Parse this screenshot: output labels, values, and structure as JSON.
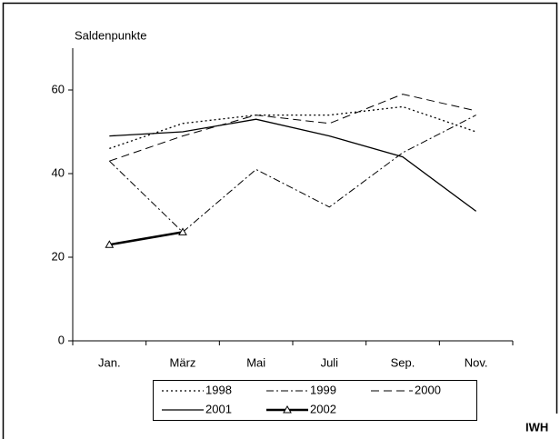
{
  "chart_data": {
    "type": "line",
    "y_label": "Saldenpunkte",
    "categories": [
      "Jan.",
      "März",
      "Mai",
      "Juli",
      "Sep.",
      "Nov."
    ],
    "ylim": [
      0,
      70
    ],
    "yticks": [
      0,
      20,
      40,
      60
    ],
    "series": [
      {
        "name": "1998",
        "color": "#000000",
        "dash": "dotted",
        "width": 1.3,
        "values": [
          46,
          52,
          54,
          54,
          56,
          50
        ]
      },
      {
        "name": "1999",
        "color": "#000000",
        "dash": "dash-dot",
        "width": 1,
        "values": [
          43,
          26,
          41,
          32,
          45,
          54
        ]
      },
      {
        "name": "2000",
        "color": "#000000",
        "dash": "dashed",
        "width": 1,
        "values": [
          43,
          49,
          54,
          52,
          59,
          55
        ]
      },
      {
        "name": "2001",
        "color": "#000000",
        "dash": "solid",
        "width": 1.3,
        "values": [
          49,
          50,
          53,
          49,
          44,
          31
        ]
      },
      {
        "name": "2002",
        "color": "#000000",
        "dash": "solid",
        "width": 2.5,
        "marker": "triangle",
        "values": [
          23,
          26,
          null,
          null,
          null,
          null
        ]
      }
    ]
  },
  "footer": "IWH"
}
